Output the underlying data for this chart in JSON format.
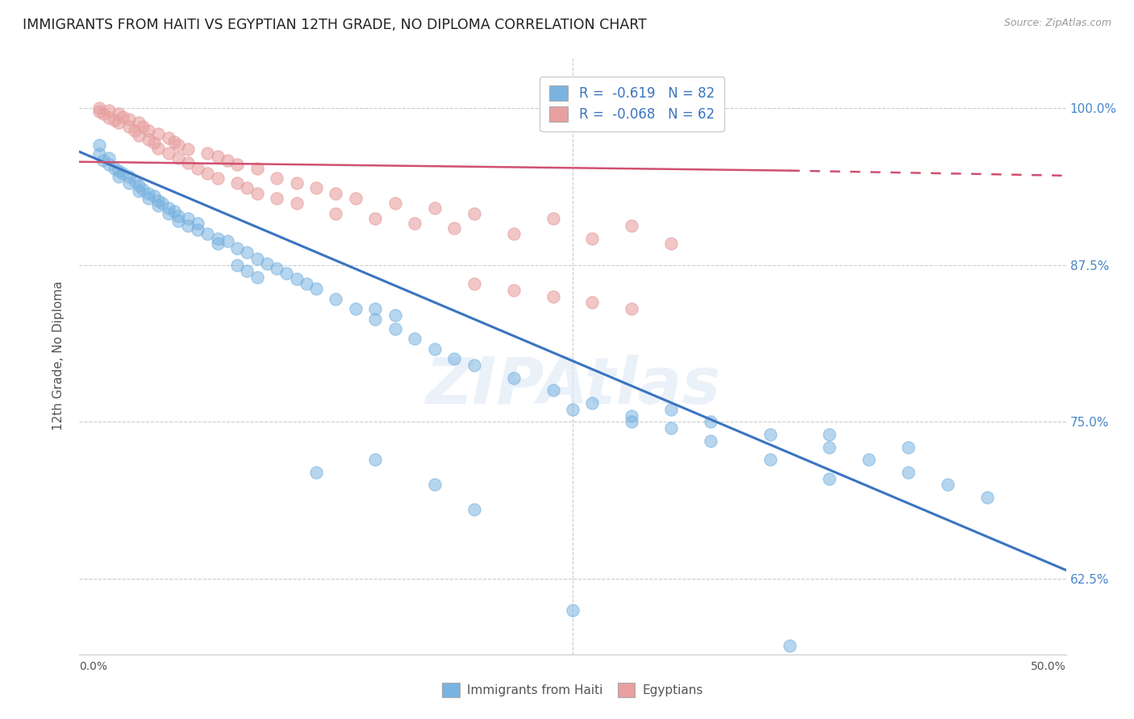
{
  "title": "IMMIGRANTS FROM HAITI VS EGYPTIAN 12TH GRADE, NO DIPLOMA CORRELATION CHART",
  "source": "Source: ZipAtlas.com",
  "ylabel": "12th Grade, No Diploma",
  "ytick_labels": [
    "100.0%",
    "87.5%",
    "75.0%",
    "62.5%"
  ],
  "ytick_values": [
    1.0,
    0.875,
    0.75,
    0.625
  ],
  "xlim": [
    0.0,
    0.5
  ],
  "ylim": [
    0.565,
    1.04
  ],
  "legend_r1": "R =  -0.619   N = 82",
  "legend_r2": "R =  -0.068   N = 62",
  "haiti_color": "#7ab3e0",
  "egypt_color": "#e8a0a0",
  "haiti_line_color": "#3a74c0",
  "egypt_line_color": "#d05070",
  "watermark": "ZIPAtlas",
  "haiti_points": [
    [
      0.01,
      0.97
    ],
    [
      0.01,
      0.963
    ],
    [
      0.012,
      0.958
    ],
    [
      0.015,
      0.955
    ],
    [
      0.015,
      0.96
    ],
    [
      0.018,
      0.952
    ],
    [
      0.02,
      0.95
    ],
    [
      0.02,
      0.945
    ],
    [
      0.022,
      0.948
    ],
    [
      0.025,
      0.945
    ],
    [
      0.025,
      0.94
    ],
    [
      0.028,
      0.942
    ],
    [
      0.03,
      0.938
    ],
    [
      0.03,
      0.934
    ],
    [
      0.032,
      0.935
    ],
    [
      0.035,
      0.932
    ],
    [
      0.035,
      0.928
    ],
    [
      0.038,
      0.93
    ],
    [
      0.04,
      0.926
    ],
    [
      0.04,
      0.922
    ],
    [
      0.042,
      0.924
    ],
    [
      0.045,
      0.92
    ],
    [
      0.045,
      0.916
    ],
    [
      0.048,
      0.918
    ],
    [
      0.05,
      0.914
    ],
    [
      0.05,
      0.91
    ],
    [
      0.055,
      0.912
    ],
    [
      0.055,
      0.906
    ],
    [
      0.06,
      0.908
    ],
    [
      0.06,
      0.903
    ],
    [
      0.065,
      0.9
    ],
    [
      0.07,
      0.896
    ],
    [
      0.07,
      0.892
    ],
    [
      0.075,
      0.894
    ],
    [
      0.08,
      0.888
    ],
    [
      0.085,
      0.885
    ],
    [
      0.09,
      0.88
    ],
    [
      0.095,
      0.876
    ],
    [
      0.1,
      0.872
    ],
    [
      0.105,
      0.868
    ],
    [
      0.11,
      0.864
    ],
    [
      0.115,
      0.86
    ],
    [
      0.12,
      0.856
    ],
    [
      0.13,
      0.848
    ],
    [
      0.14,
      0.84
    ],
    [
      0.15,
      0.832
    ],
    [
      0.16,
      0.824
    ],
    [
      0.17,
      0.816
    ],
    [
      0.18,
      0.808
    ],
    [
      0.19,
      0.8
    ],
    [
      0.08,
      0.875
    ],
    [
      0.085,
      0.87
    ],
    [
      0.09,
      0.865
    ],
    [
      0.15,
      0.84
    ],
    [
      0.16,
      0.835
    ],
    [
      0.2,
      0.795
    ],
    [
      0.22,
      0.785
    ],
    [
      0.24,
      0.775
    ],
    [
      0.26,
      0.765
    ],
    [
      0.28,
      0.755
    ],
    [
      0.3,
      0.745
    ],
    [
      0.32,
      0.735
    ],
    [
      0.35,
      0.72
    ],
    [
      0.38,
      0.705
    ],
    [
      0.3,
      0.76
    ],
    [
      0.32,
      0.75
    ],
    [
      0.35,
      0.74
    ],
    [
      0.38,
      0.73
    ],
    [
      0.4,
      0.72
    ],
    [
      0.42,
      0.71
    ],
    [
      0.44,
      0.7
    ],
    [
      0.46,
      0.69
    ],
    [
      0.15,
      0.72
    ],
    [
      0.18,
      0.7
    ],
    [
      0.2,
      0.68
    ],
    [
      0.12,
      0.71
    ],
    [
      0.25,
      0.76
    ],
    [
      0.28,
      0.75
    ],
    [
      0.38,
      0.74
    ],
    [
      0.42,
      0.73
    ],
    [
      0.25,
      0.6
    ],
    [
      0.36,
      0.572
    ]
  ],
  "egypt_points": [
    [
      0.01,
      1.0
    ],
    [
      0.01,
      0.997
    ],
    [
      0.012,
      0.995
    ],
    [
      0.015,
      0.998
    ],
    [
      0.015,
      0.992
    ],
    [
      0.018,
      0.99
    ],
    [
      0.02,
      0.995
    ],
    [
      0.02,
      0.988
    ],
    [
      0.022,
      0.993
    ],
    [
      0.025,
      0.985
    ],
    [
      0.025,
      0.991
    ],
    [
      0.028,
      0.982
    ],
    [
      0.03,
      0.988
    ],
    [
      0.03,
      0.978
    ],
    [
      0.032,
      0.985
    ],
    [
      0.035,
      0.975
    ],
    [
      0.035,
      0.982
    ],
    [
      0.038,
      0.972
    ],
    [
      0.04,
      0.979
    ],
    [
      0.04,
      0.968
    ],
    [
      0.045,
      0.976
    ],
    [
      0.045,
      0.964
    ],
    [
      0.048,
      0.973
    ],
    [
      0.05,
      0.96
    ],
    [
      0.05,
      0.97
    ],
    [
      0.055,
      0.956
    ],
    [
      0.055,
      0.967
    ],
    [
      0.06,
      0.952
    ],
    [
      0.065,
      0.964
    ],
    [
      0.065,
      0.948
    ],
    [
      0.07,
      0.961
    ],
    [
      0.07,
      0.944
    ],
    [
      0.075,
      0.958
    ],
    [
      0.08,
      0.94
    ],
    [
      0.08,
      0.955
    ],
    [
      0.085,
      0.936
    ],
    [
      0.09,
      0.952
    ],
    [
      0.09,
      0.932
    ],
    [
      0.1,
      0.944
    ],
    [
      0.1,
      0.928
    ],
    [
      0.11,
      0.94
    ],
    [
      0.11,
      0.924
    ],
    [
      0.12,
      0.936
    ],
    [
      0.13,
      0.932
    ],
    [
      0.13,
      0.916
    ],
    [
      0.14,
      0.928
    ],
    [
      0.15,
      0.912
    ],
    [
      0.16,
      0.924
    ],
    [
      0.17,
      0.908
    ],
    [
      0.18,
      0.92
    ],
    [
      0.19,
      0.904
    ],
    [
      0.2,
      0.916
    ],
    [
      0.22,
      0.9
    ],
    [
      0.24,
      0.912
    ],
    [
      0.26,
      0.896
    ],
    [
      0.28,
      0.906
    ],
    [
      0.3,
      0.892
    ],
    [
      0.2,
      0.86
    ],
    [
      0.22,
      0.855
    ],
    [
      0.24,
      0.85
    ],
    [
      0.26,
      0.845
    ],
    [
      0.28,
      0.84
    ]
  ],
  "haiti_trendline": [
    [
      0.0,
      0.965
    ],
    [
      0.5,
      0.632
    ]
  ],
  "egypt_trendline_solid": [
    [
      0.0,
      0.957
    ],
    [
      0.36,
      0.95
    ]
  ],
  "egypt_trendline_dash": [
    [
      0.36,
      0.95
    ],
    [
      0.5,
      0.946
    ]
  ]
}
